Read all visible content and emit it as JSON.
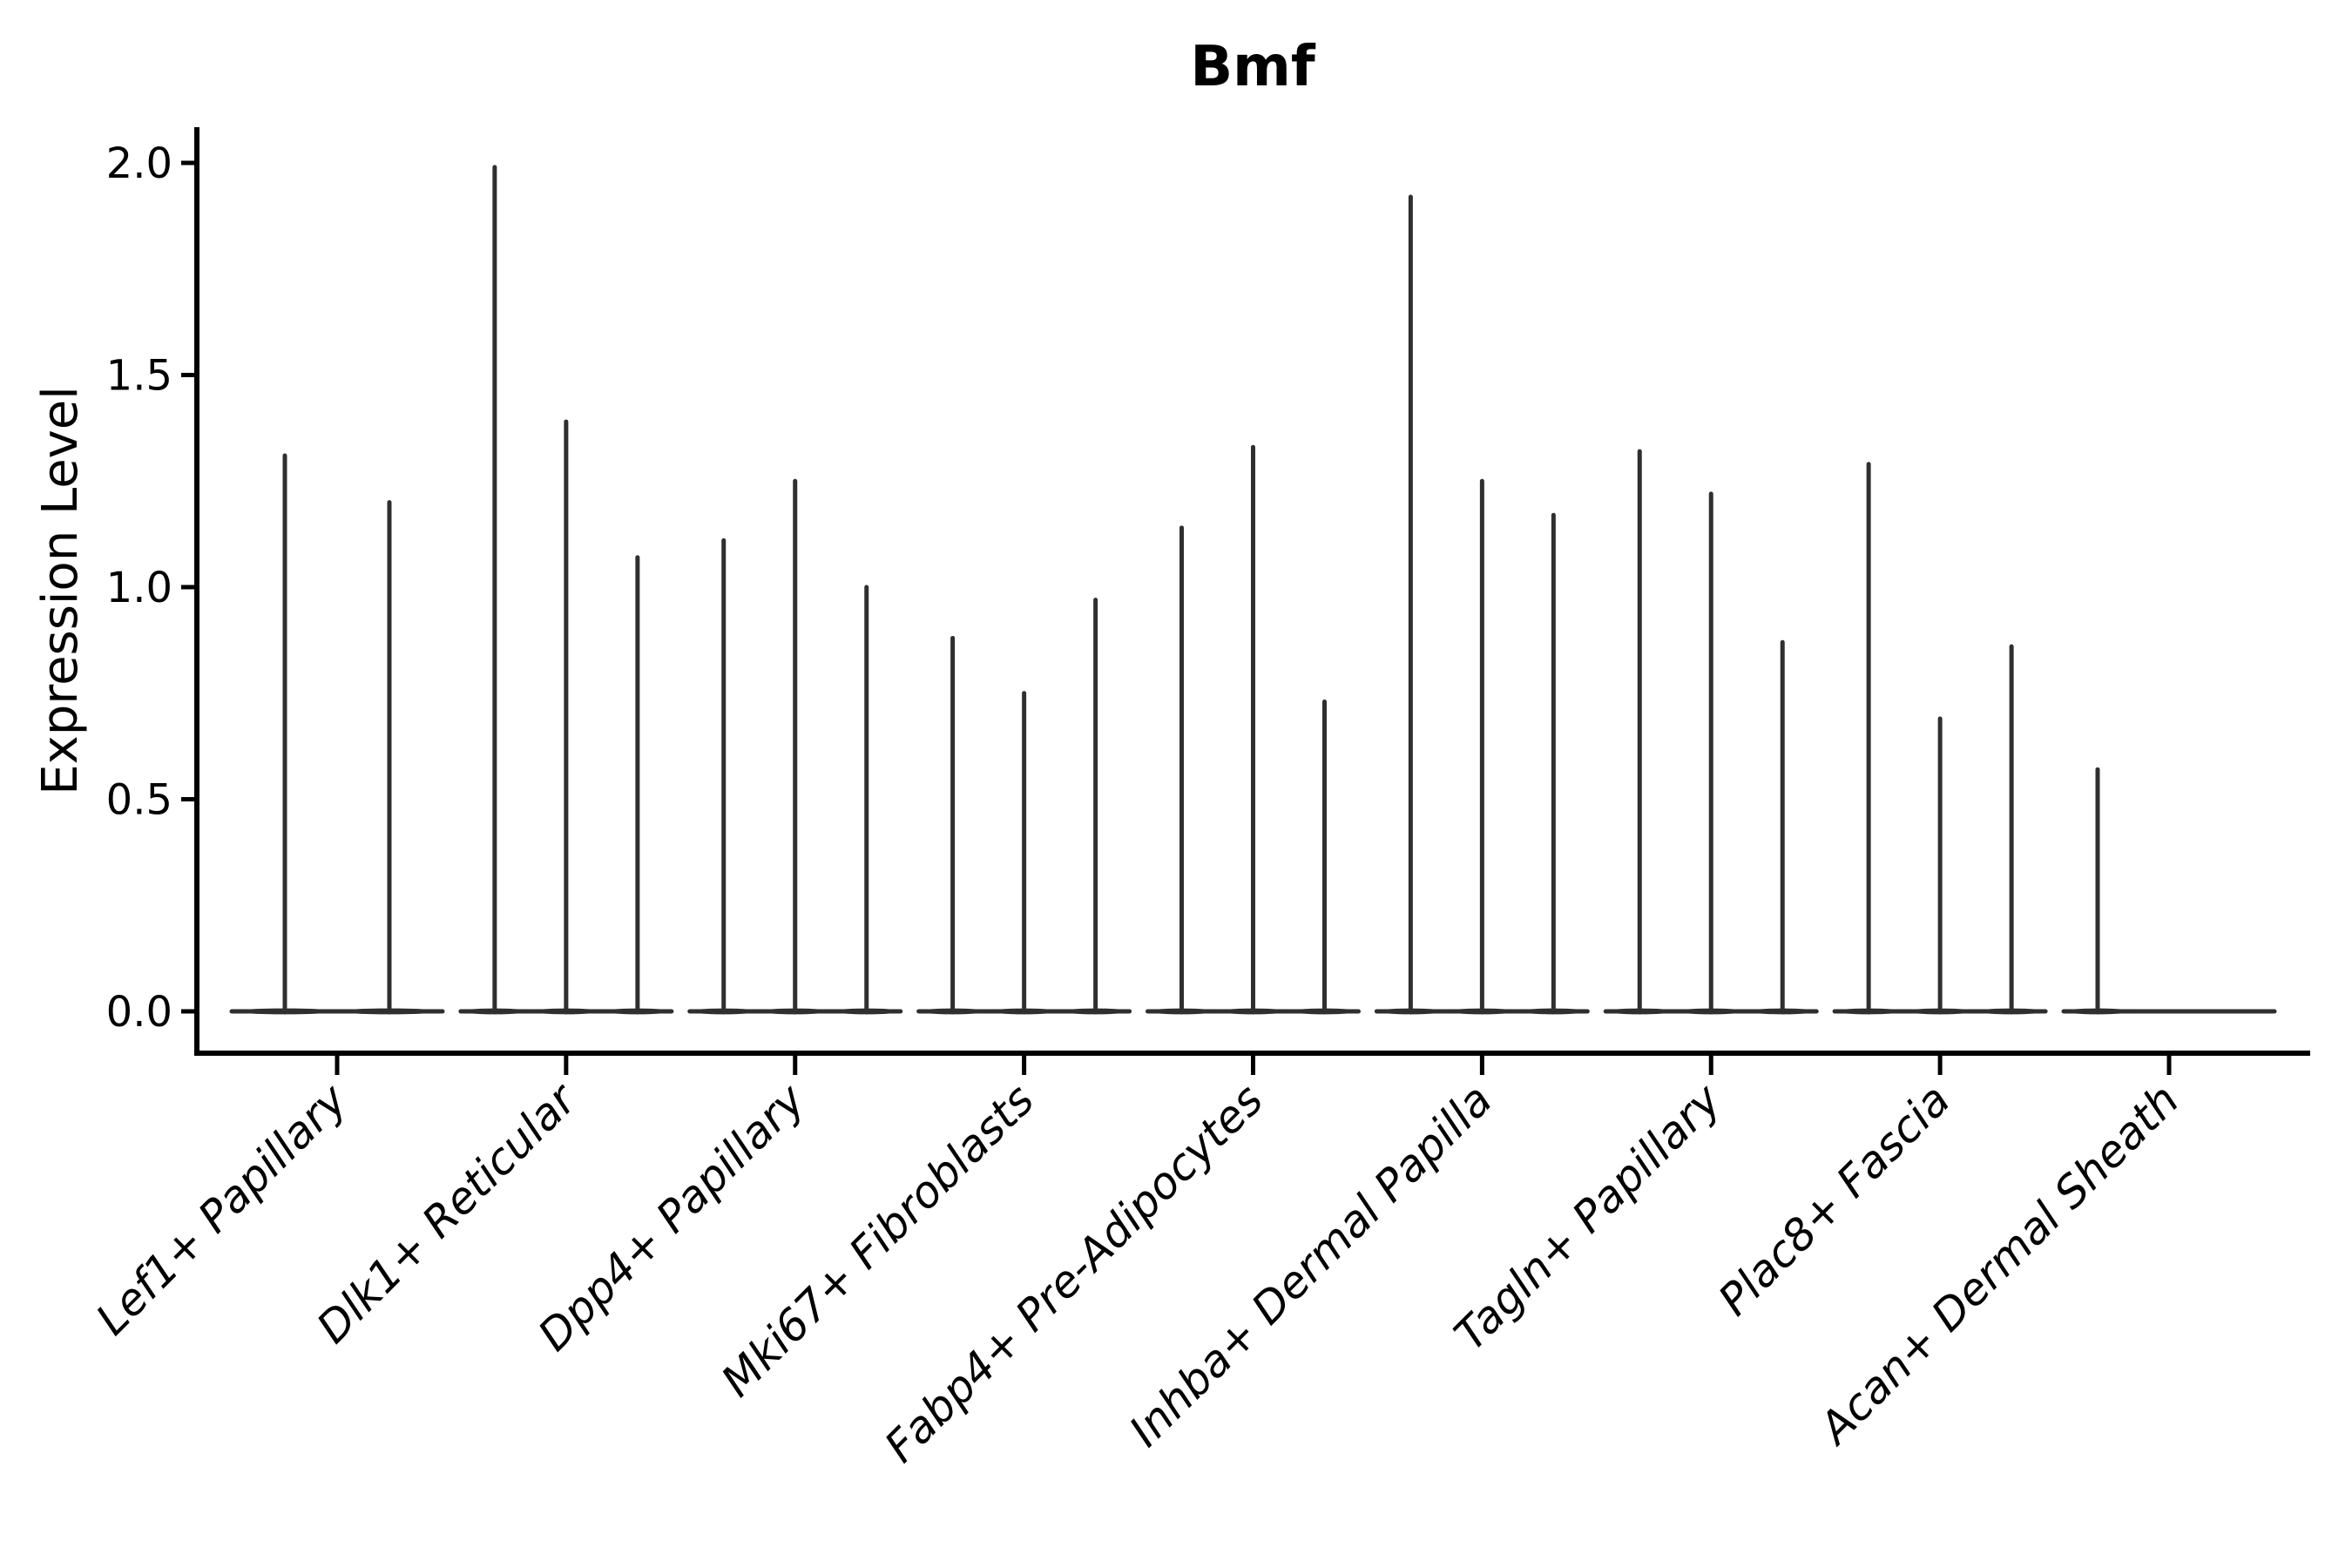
{
  "title": "Bmf",
  "y_axis": {
    "label": "Expression Level",
    "tick_labels": [
      "0.0",
      "0.5",
      "1.0",
      "1.5",
      "2.0"
    ]
  },
  "chart_data": {
    "type": "violin",
    "title": "Bmf",
    "xlabel": "",
    "ylabel": "Expression Level",
    "ylim": [
      -0.1,
      2.08
    ],
    "yticks": [
      0.0,
      0.5,
      1.0,
      1.5,
      2.0
    ],
    "grid": false,
    "legend": "none",
    "description": "Needle-thin violins: nearly all mass at 0 (flat base) with a thin spike to the max expression value per violin.",
    "categories": [
      "Lef1+ Papillary",
      "Dlk1+ Reticular",
      "Dpp4+ Papillary",
      "Mki67+ Fibroblasts",
      "Fabp4+ Pre-Adipocytes",
      "Inhba+ Dermal Papilla",
      "Tagln+ Papillary",
      "Plac8+ Fascia",
      "Acan+ Dermal Sheath"
    ],
    "groups": [
      {
        "category": "Lef1+ Papillary",
        "violins": [
          {
            "offset": -60,
            "max": 1.31
          },
          {
            "offset": 60,
            "max": 1.2
          }
        ]
      },
      {
        "category": "Dlk1+ Reticular",
        "violins": [
          {
            "offset": -82,
            "max": 1.99
          },
          {
            "offset": 0,
            "max": 1.39
          },
          {
            "offset": 82,
            "max": 1.07
          }
        ]
      },
      {
        "category": "Dpp4+ Papillary",
        "violins": [
          {
            "offset": -82,
            "max": 1.11
          },
          {
            "offset": 0,
            "max": 1.25
          },
          {
            "offset": 82,
            "max": 1.0
          }
        ]
      },
      {
        "category": "Mki67+ Fibroblasts",
        "violins": [
          {
            "offset": -82,
            "max": 0.88
          },
          {
            "offset": 0,
            "max": 0.75
          },
          {
            "offset": 82,
            "max": 0.97
          }
        ]
      },
      {
        "category": "Fabp4+ Pre-Adipocytes",
        "violins": [
          {
            "offset": -82,
            "max": 1.14
          },
          {
            "offset": 0,
            "max": 1.33
          },
          {
            "offset": 82,
            "max": 0.73
          }
        ]
      },
      {
        "category": "Inhba+ Dermal Papilla",
        "violins": [
          {
            "offset": -82,
            "max": 1.92
          },
          {
            "offset": 0,
            "max": 1.25
          },
          {
            "offset": 82,
            "max": 1.17
          }
        ]
      },
      {
        "category": "Tagln+ Papillary",
        "violins": [
          {
            "offset": -82,
            "max": 1.32
          },
          {
            "offset": 0,
            "max": 1.22
          },
          {
            "offset": 82,
            "max": 0.87
          }
        ]
      },
      {
        "category": "Plac8+ Fascia",
        "violins": [
          {
            "offset": -82,
            "max": 1.29
          },
          {
            "offset": 0,
            "max": 0.69
          },
          {
            "offset": 82,
            "max": 0.86
          }
        ]
      },
      {
        "category": "Acan+ Dermal Sheath",
        "violins": [
          {
            "offset": -82,
            "max": 0.57
          }
        ]
      }
    ],
    "colors": {
      "violin_stroke": "#2f2f2f",
      "axis_stroke": "#000000",
      "background": "#ffffff"
    }
  }
}
